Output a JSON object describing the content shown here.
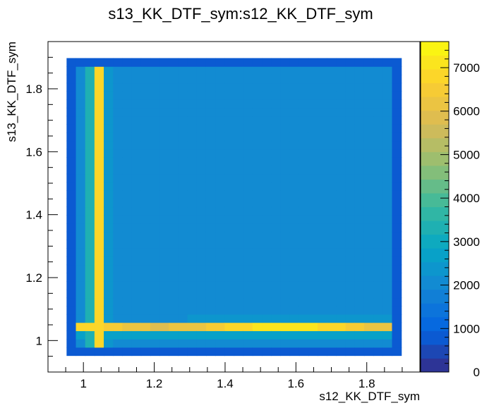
{
  "chart_data": {
    "type": "heatmap",
    "title": "s13_KK_DTF_sym:s12_KK_DTF_sym",
    "xlabel": "s12_KK_DTF_sym",
    "ylabel": "s13_KK_DTF_sym",
    "xlim": [
      0.9,
      1.95
    ],
    "ylim": [
      0.9,
      1.95
    ],
    "zlim": [
      0,
      7600
    ],
    "bins": 40,
    "x_ticks": [
      {
        "value": 1.0,
        "label": "1"
      },
      {
        "value": 1.2,
        "label": "1.2"
      },
      {
        "value": 1.4,
        "label": "1.4"
      },
      {
        "value": 1.6,
        "label": "1.6"
      },
      {
        "value": 1.8,
        "label": "1.8"
      }
    ],
    "y_ticks": [
      {
        "value": 1.0,
        "label": "1"
      },
      {
        "value": 1.2,
        "label": "1.2"
      },
      {
        "value": 1.4,
        "label": "1.4"
      },
      {
        "value": 1.6,
        "label": "1.6"
      },
      {
        "value": 1.8,
        "label": "1.8"
      }
    ],
    "z_ticks": [
      {
        "value": 0,
        "label": "0"
      },
      {
        "value": 1000,
        "label": "1000"
      },
      {
        "value": 2000,
        "label": "2000"
      },
      {
        "value": 3000,
        "label": "3000"
      },
      {
        "value": 4000,
        "label": "4000"
      },
      {
        "value": 5000,
        "label": "5000"
      },
      {
        "value": 6000,
        "label": "6000"
      },
      {
        "value": 7000,
        "label": "7000"
      }
    ],
    "colormap": [
      "#352a87",
      "#0363e1",
      "#1485d4",
      "#06a7c6",
      "#38b99e",
      "#92bf73",
      "#d9ba56",
      "#fcce2e",
      "#f9fb0e"
    ],
    "region_notes": "Dalitz-like population: bulk ~1800-2000 counts, vertical band at s12~1.04 (~6500-7200), horizontal band at s13~1.05 (~6000-7300), sparse edges ~300-900"
  }
}
